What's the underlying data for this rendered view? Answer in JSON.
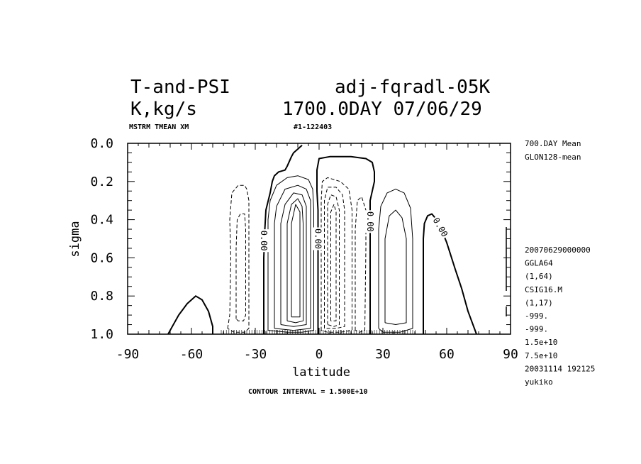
{
  "header": {
    "title_left": "T-and-PSI",
    "title_right": "adj-fqradl-05K",
    "units": "K,kg/s",
    "date": "1700.0DAY 07/06/29",
    "sub_left": "MSTRM TMEAN XM",
    "sub_right": "#1-122403"
  },
  "side_info": {
    "top": [
      "700.DAY Mean",
      "GLON128-mean"
    ],
    "bottom": [
      "20070629000000",
      "GGLA64",
      "(1,64)",
      "CSIG16.M",
      "(1,17)",
      "-999.",
      "-999.",
      "1.5e+10",
      "7.5e+10",
      "20031114 192125",
      "yukiko"
    ]
  },
  "footer": {
    "contour_interval": "CONTOUR INTERVAL = 1.500E+10"
  },
  "chart_data": {
    "type": "contour",
    "xlabel": "latitude",
    "ylabel": "sigma",
    "xlim": [
      -90,
      90
    ],
    "ylim": [
      1.0,
      0.0
    ],
    "x_ticks": [
      -90,
      -60,
      -30,
      0,
      30,
      60,
      90
    ],
    "x_tick_labels": [
      "-90",
      "-60",
      "-30",
      "0",
      "30",
      "60",
      "90"
    ],
    "y_ticks": [
      0.0,
      0.2,
      0.4,
      0.6,
      0.8,
      1.0
    ],
    "y_tick_labels": [
      "0.0",
      "0.2",
      "0.4",
      "0.6",
      "0.8",
      "1.0"
    ],
    "contour_label": "0.00",
    "contour_interval": 15000000000.0,
    "zero_lines": [
      [
        [
          -71,
          1.0
        ],
        [
          -69,
          0.96
        ],
        [
          -66,
          0.9
        ],
        [
          -62,
          0.84
        ],
        [
          -58,
          0.8
        ],
        [
          -55,
          0.82
        ],
        [
          -52,
          0.88
        ],
        [
          -50,
          0.96
        ],
        [
          -50,
          1.0
        ]
      ],
      [
        [
          -26,
          1.0
        ],
        [
          -26,
          0.8
        ],
        [
          -26,
          0.6
        ],
        [
          -25.5,
          0.45
        ],
        [
          -25,
          0.35
        ],
        [
          -23,
          0.26
        ],
        [
          -22,
          0.2
        ],
        [
          -21,
          0.17
        ],
        [
          -19,
          0.15
        ],
        [
          -16,
          0.14
        ],
        [
          -15,
          0.12
        ],
        [
          -13,
          0.07
        ],
        [
          -12,
          0.05
        ],
        [
          -10,
          0.03
        ],
        [
          -9,
          0.02
        ],
        [
          -8,
          0.01
        ]
      ],
      [
        [
          -0.5,
          1.0
        ],
        [
          -0.5,
          0.6
        ],
        [
          -0.5,
          0.35
        ],
        [
          -1,
          0.25
        ],
        [
          -1,
          0.14
        ],
        [
          0,
          0.08
        ],
        [
          5,
          0.07
        ],
        [
          15,
          0.07
        ],
        [
          22,
          0.08
        ],
        [
          25,
          0.1
        ],
        [
          26,
          0.15
        ],
        [
          26,
          0.2
        ],
        [
          25,
          0.25
        ],
        [
          24,
          0.3
        ],
        [
          24,
          0.6
        ],
        [
          24,
          1.0
        ]
      ],
      [
        [
          49,
          1.0
        ],
        [
          49,
          0.7
        ],
        [
          49,
          0.5
        ],
        [
          49.5,
          0.42
        ],
        [
          51,
          0.38
        ],
        [
          53,
          0.37
        ],
        [
          56,
          0.41
        ],
        [
          60,
          0.52
        ],
        [
          64,
          0.66
        ],
        [
          67,
          0.76
        ],
        [
          70,
          0.88
        ],
        [
          74,
          1.0
        ]
      ]
    ],
    "negative_contours": [
      [
        [
          -43,
          0.97
        ],
        [
          -42,
          0.9
        ],
        [
          -41.5,
          0.6
        ],
        [
          -42,
          0.4
        ],
        [
          -41,
          0.26
        ],
        [
          -38,
          0.22
        ],
        [
          -35,
          0.22
        ],
        [
          -34,
          0.24
        ],
        [
          -33,
          0.3
        ],
        [
          -33,
          0.97
        ],
        [
          -35,
          0.99
        ],
        [
          -40,
          0.99
        ],
        [
          -43,
          0.97
        ]
      ],
      [
        [
          -39,
          0.92
        ],
        [
          -39,
          0.55
        ],
        [
          -38.5,
          0.4
        ],
        [
          -37,
          0.37
        ],
        [
          -35,
          0.37
        ],
        [
          -34.5,
          0.45
        ],
        [
          -34.5,
          0.9
        ],
        [
          -35.5,
          0.93
        ],
        [
          -38,
          0.93
        ],
        [
          -39,
          0.92
        ]
      ],
      [
        [
          1,
          0.98
        ],
        [
          1,
          0.3
        ],
        [
          1.5,
          0.2
        ],
        [
          4,
          0.18
        ],
        [
          10,
          0.2
        ],
        [
          14,
          0.24
        ],
        [
          15.5,
          0.35
        ],
        [
          15.5,
          0.98
        ],
        [
          10,
          0.99
        ],
        [
          4,
          0.99
        ],
        [
          1,
          0.98
        ]
      ],
      [
        [
          2.5,
          0.97
        ],
        [
          2.5,
          0.3
        ],
        [
          4,
          0.23
        ],
        [
          8,
          0.23
        ],
        [
          11,
          0.27
        ],
        [
          12,
          0.35
        ],
        [
          12,
          0.96
        ],
        [
          8,
          0.97
        ],
        [
          2.5,
          0.97
        ]
      ],
      [
        [
          4,
          0.95
        ],
        [
          4,
          0.32
        ],
        [
          5.5,
          0.27
        ],
        [
          8,
          0.28
        ],
        [
          9.5,
          0.35
        ],
        [
          9.5,
          0.95
        ],
        [
          7,
          0.96
        ],
        [
          4,
          0.95
        ]
      ],
      [
        [
          5.5,
          0.93
        ],
        [
          5.5,
          0.36
        ],
        [
          7,
          0.32
        ],
        [
          8,
          0.36
        ],
        [
          8,
          0.93
        ],
        [
          5.5,
          0.93
        ]
      ],
      [
        [
          17,
          0.98
        ],
        [
          17,
          0.45
        ],
        [
          18,
          0.3
        ],
        [
          20,
          0.28
        ],
        [
          22,
          0.35
        ],
        [
          22,
          0.55
        ],
        [
          21.5,
          0.98
        ],
        [
          19,
          0.99
        ],
        [
          17,
          0.98
        ]
      ]
    ],
    "positive_contours": [
      [
        [
          -24,
          0.98
        ],
        [
          -24,
          0.4
        ],
        [
          -23,
          0.3
        ],
        [
          -20,
          0.22
        ],
        [
          -15,
          0.18
        ],
        [
          -10,
          0.17
        ],
        [
          -5,
          0.19
        ],
        [
          -3,
          0.24
        ],
        [
          -2.5,
          0.35
        ],
        [
          -2.5,
          0.98
        ],
        [
          -8,
          0.99
        ],
        [
          -15,
          0.99
        ],
        [
          -24,
          0.98
        ]
      ],
      [
        [
          -21,
          0.97
        ],
        [
          -21,
          0.42
        ],
        [
          -20,
          0.33
        ],
        [
          -16,
          0.24
        ],
        [
          -10,
          0.22
        ],
        [
          -6,
          0.24
        ],
        [
          -4,
          0.3
        ],
        [
          -4,
          0.97
        ],
        [
          -12,
          0.98
        ],
        [
          -21,
          0.97
        ]
      ],
      [
        [
          -18,
          0.95
        ],
        [
          -18,
          0.42
        ],
        [
          -16,
          0.32
        ],
        [
          -12,
          0.26
        ],
        [
          -8,
          0.27
        ],
        [
          -6,
          0.33
        ],
        [
          -6,
          0.95
        ],
        [
          -12,
          0.96
        ],
        [
          -18,
          0.95
        ]
      ],
      [
        [
          -15,
          0.93
        ],
        [
          -15,
          0.42
        ],
        [
          -13,
          0.32
        ],
        [
          -10,
          0.29
        ],
        [
          -8,
          0.33
        ],
        [
          -7.5,
          0.42
        ],
        [
          -7.5,
          0.93
        ],
        [
          -11,
          0.94
        ],
        [
          -15,
          0.93
        ]
      ],
      [
        [
          -13,
          0.91
        ],
        [
          -13,
          0.42
        ],
        [
          -11,
          0.32
        ],
        [
          -9,
          0.36
        ],
        [
          -9,
          0.91
        ],
        [
          -13,
          0.91
        ]
      ],
      [
        [
          28,
          0.97
        ],
        [
          28,
          0.45
        ],
        [
          29,
          0.33
        ],
        [
          32,
          0.26
        ],
        [
          36,
          0.24
        ],
        [
          40,
          0.26
        ],
        [
          43,
          0.34
        ],
        [
          44,
          0.5
        ],
        [
          44,
          0.97
        ],
        [
          38,
          0.99
        ],
        [
          30,
          0.99
        ],
        [
          28,
          0.97
        ]
      ],
      [
        [
          31,
          0.94
        ],
        [
          31,
          0.5
        ],
        [
          33,
          0.38
        ],
        [
          36,
          0.35
        ],
        [
          39,
          0.39
        ],
        [
          41,
          0.5
        ],
        [
          41,
          0.94
        ],
        [
          36,
          0.95
        ],
        [
          31,
          0.94
        ]
      ]
    ],
    "label_positions": [
      [
        -26,
        0.51,
        90
      ],
      [
        -0.5,
        0.5,
        90
      ],
      [
        24,
        0.41,
        90
      ],
      [
        57,
        0.44,
        60
      ]
    ]
  }
}
